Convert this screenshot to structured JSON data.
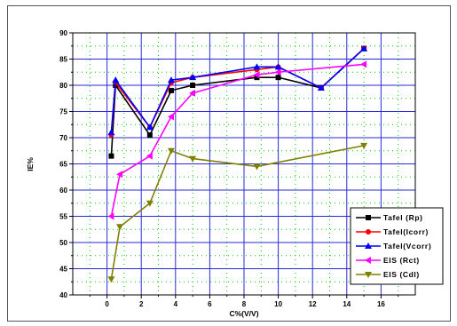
{
  "chart_data": {
    "type": "line",
    "xlabel": "C%(V/V)",
    "ylabel": "IE%",
    "xlim": [
      -2,
      18
    ],
    "ylim": [
      40,
      90
    ],
    "xticks": [
      0,
      2,
      4,
      6,
      8,
      10,
      12,
      14,
      16
    ],
    "yticks": [
      40,
      45,
      50,
      55,
      60,
      65,
      70,
      75,
      80,
      85,
      90
    ],
    "grid": true,
    "legend_position": "lower-right",
    "series": [
      {
        "name": "Tafel (Rp)",
        "color": "#000000",
        "marker": "square",
        "x": [
          0.25,
          0.5,
          2.5,
          3.75,
          5,
          8.75,
          10,
          12.5,
          15
        ],
        "y": [
          66.5,
          80,
          70.5,
          79,
          80,
          81.5,
          81.5,
          79.5,
          87
        ]
      },
      {
        "name": "Tafel(Icorr)",
        "color": "#ff0000",
        "marker": "circle",
        "x": [
          0.25,
          0.5,
          2.5,
          3.75,
          5,
          8.75,
          10,
          12.5,
          15
        ],
        "y": [
          70.5,
          80.5,
          72,
          80.5,
          81.5,
          83,
          83.5,
          79.5,
          87
        ]
      },
      {
        "name": "Tafel(Vcorr)",
        "color": "#0000ff",
        "marker": "triangle-up",
        "x": [
          0.25,
          0.5,
          2.5,
          3.75,
          5,
          8.75,
          10,
          12.5,
          15
        ],
        "y": [
          71,
          81,
          72,
          81,
          81.5,
          83.5,
          83.5,
          79.5,
          87
        ]
      },
      {
        "name": "EIS (Rct)",
        "color": "#ff00ff",
        "marker": "triangle-left",
        "x": [
          0.25,
          0.75,
          2.5,
          3.75,
          5,
          8.75,
          10,
          15
        ],
        "y": [
          55,
          63,
          66.5,
          74,
          78.5,
          82,
          82.5,
          84
        ]
      },
      {
        "name": "EIS (Cdl)",
        "color": "#808000",
        "marker": "triangle-down",
        "x": [
          0.25,
          0.75,
          2.5,
          3.75,
          5,
          8.75,
          15
        ],
        "y": [
          43,
          53,
          57.5,
          67.5,
          66,
          64.5,
          68.5
        ]
      }
    ]
  }
}
